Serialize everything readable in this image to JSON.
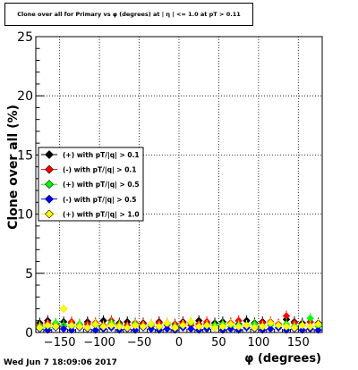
{
  "title": "Clone  over all for Primary vs φ (degrees) at | η | <= 1.0 at pT > 0.11",
  "footer_date": "Wed Jun  7 18:09:06 2017",
  "chart_data": {
    "type": "scatter",
    "xlabel": "φ (degrees)",
    "ylabel": "Clone  over all (%)",
    "xlim": [
      -180,
      180
    ],
    "ylim": [
      0,
      25
    ],
    "x_ticks": [
      -150,
      -100,
      -50,
      0,
      50,
      100,
      150
    ],
    "x_tick_labels": [
      "−150",
      "−100",
      "−50",
      "0",
      "50",
      "100",
      "150"
    ],
    "y_ticks": [
      0,
      5,
      10,
      15,
      20,
      25
    ],
    "y_tick_labels": [
      "0",
      "5",
      "10",
      "15",
      "20",
      "25"
    ],
    "grid": true,
    "legend_position": "left-middle",
    "series": [
      {
        "name": "(+) with pT/|q| > 0.1",
        "color": "#000000",
        "marker": "diamond",
        "x": [
          -175,
          -165,
          -155,
          -145,
          -135,
          -125,
          -115,
          -105,
          -95,
          -85,
          -75,
          -65,
          -55,
          -45,
          -35,
          -25,
          -15,
          -5,
          5,
          15,
          25,
          35,
          45,
          55,
          65,
          75,
          85,
          95,
          105,
          115,
          125,
          135,
          145,
          155,
          165,
          175
        ],
        "y": [
          0.8,
          1.0,
          0.7,
          0.9,
          0.8,
          0.7,
          0.9,
          0.8,
          1.0,
          0.7,
          0.8,
          0.9,
          0.6,
          0.8,
          0.7,
          0.9,
          0.8,
          0.7,
          0.9,
          0.8,
          1.0,
          0.7,
          0.8,
          0.9,
          0.8,
          0.7,
          1.0,
          0.8,
          0.9,
          0.8,
          0.7,
          1.1,
          0.9,
          0.8,
          0.9,
          0.8
        ]
      },
      {
        "name": "(-) with pT/|q| > 0.1",
        "color": "#ff0000",
        "marker": "diamond",
        "x": [
          -175,
          -165,
          -155,
          -145,
          -135,
          -125,
          -115,
          -105,
          -95,
          -85,
          -75,
          -65,
          -55,
          -45,
          -35,
          -25,
          -15,
          -5,
          5,
          15,
          25,
          35,
          45,
          55,
          65,
          75,
          85,
          95,
          105,
          115,
          125,
          135,
          145,
          155,
          165,
          175
        ],
        "y": [
          0.6,
          0.8,
          0.7,
          0.5,
          0.9,
          0.6,
          0.7,
          0.8,
          0.6,
          1.0,
          0.7,
          0.6,
          0.8,
          0.7,
          0.5,
          0.8,
          0.6,
          0.7,
          0.8,
          0.6,
          0.7,
          0.9,
          0.6,
          0.7,
          0.8,
          1.0,
          0.6,
          0.7,
          0.8,
          0.9,
          0.7,
          1.4,
          0.8,
          0.6,
          0.9,
          0.7
        ]
      },
      {
        "name": "(+) with pT/|q| > 0.5",
        "color": "#00ff00",
        "marker": "diamond",
        "x": [
          -175,
          -165,
          -155,
          -145,
          -135,
          -125,
          -115,
          -105,
          -95,
          -85,
          -75,
          -65,
          -55,
          -45,
          -35,
          -25,
          -15,
          -5,
          5,
          15,
          25,
          35,
          45,
          55,
          65,
          75,
          85,
          95,
          105,
          115,
          125,
          135,
          145,
          155,
          165,
          175
        ],
        "y": [
          0.5,
          0.4,
          0.8,
          0.6,
          0.5,
          0.7,
          0.4,
          0.6,
          0.5,
          0.8,
          0.6,
          0.4,
          0.7,
          0.5,
          0.6,
          0.4,
          0.7,
          0.5,
          0.6,
          0.8,
          0.5,
          0.4,
          0.6,
          0.7,
          0.5,
          0.6,
          0.4,
          0.7,
          0.5,
          0.6,
          0.4,
          0.7,
          0.5,
          0.6,
          1.2,
          0.5
        ]
      },
      {
        "name": "(-) with pT/|q| > 0.5",
        "color": "#0000ff",
        "marker": "diamond",
        "x": [
          -175,
          -165,
          -155,
          -145,
          -135,
          -125,
          -115,
          -105,
          -95,
          -85,
          -75,
          -65,
          -55,
          -45,
          -35,
          -25,
          -15,
          -5,
          5,
          15,
          25,
          35,
          45,
          55,
          65,
          75,
          85,
          95,
          105,
          115,
          125,
          135,
          145,
          155,
          165,
          175
        ],
        "y": [
          0.3,
          0.2,
          0.4,
          0.3,
          0.2,
          0.4,
          0.3,
          0.2,
          0.3,
          0.4,
          0.2,
          0.3,
          0.2,
          0.4,
          0.3,
          0.2,
          0.3,
          0.2,
          0.4,
          0.3,
          0.2,
          0.3,
          0.4,
          0.2,
          0.3,
          0.2,
          0.4,
          0.3,
          0.2,
          0.3,
          0.4,
          0.2,
          0.3,
          0.2,
          0.3,
          0.2
        ]
      },
      {
        "name": "(+) with pT/|q| > 1.0",
        "color": "#ffff00",
        "marker": "diamond",
        "x": [
          -175,
          -165,
          -155,
          -145,
          -135,
          -125,
          -115,
          -105,
          -95,
          -85,
          -75,
          -65,
          -55,
          -45,
          -35,
          -25,
          -15,
          -5,
          5,
          15,
          25,
          35,
          45,
          55,
          65,
          75,
          85,
          95,
          105,
          115,
          125,
          135,
          145,
          155,
          165,
          175
        ],
        "y": [
          0.4,
          0.6,
          0.5,
          2.0,
          0.6,
          0.5,
          0.4,
          0.7,
          0.5,
          0.6,
          0.5,
          0.4,
          0.6,
          0.5,
          0.7,
          0.5,
          0.8,
          0.4,
          0.6,
          0.9,
          0.5,
          0.6,
          0.4,
          0.5,
          0.7,
          0.5,
          0.6,
          0.4,
          0.5,
          0.8,
          0.6,
          0.5,
          0.4,
          0.6,
          0.5,
          0.7
        ]
      }
    ]
  }
}
